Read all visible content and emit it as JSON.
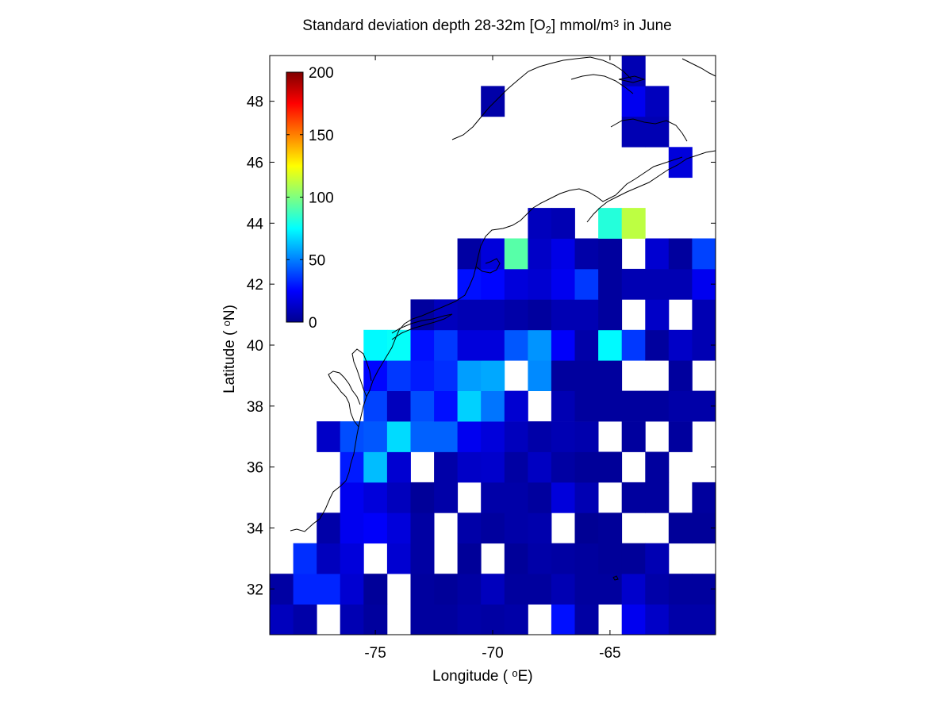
{
  "title": {
    "prefix": "Standard deviation depth 28-32m [O",
    "sub": "2",
    "middle": "] mmol/m",
    "sup": "3",
    "suffix": " in June"
  },
  "xlabel": {
    "text": "Longitude (",
    "deg": "o",
    "unit": "E)"
  },
  "ylabel": {
    "text": "Latitude (",
    "deg": "o",
    "unit": "N)"
  },
  "chart_data": {
    "type": "heatmap",
    "x_range": [
      -79.5,
      -60.5
    ],
    "y_range": [
      30.5,
      49.5
    ],
    "x_ticks": [
      -75,
      -70,
      -65
    ],
    "x_tick_labels": [
      "-75",
      "-70",
      "-65"
    ],
    "y_ticks": [
      32,
      34,
      36,
      38,
      40,
      42,
      44,
      46,
      48
    ],
    "y_tick_labels": [
      "32",
      "34",
      "36",
      "38",
      "40",
      "42",
      "44",
      "46",
      "48"
    ],
    "colorbar": {
      "colormap": "jet",
      "range": [
        0,
        200
      ],
      "ticks": [
        0,
        50,
        100,
        150,
        200
      ],
      "tick_labels": [
        "0",
        "50",
        "100",
        "150",
        "200"
      ]
    },
    "cell_size_deg": 1,
    "cells_note": "each cell: [lon_center, lat_center, std_dev]",
    "cells": [
      [
        -79,
        31,
        12
      ],
      [
        -78,
        31,
        8
      ],
      [
        -76,
        31,
        10
      ],
      [
        -75,
        31,
        6
      ],
      [
        -73,
        31,
        6
      ],
      [
        -72,
        31,
        6
      ],
      [
        -71,
        31,
        8
      ],
      [
        -70,
        31,
        7
      ],
      [
        -69,
        31,
        8
      ],
      [
        -67,
        31,
        28
      ],
      [
        -66,
        31,
        7
      ],
      [
        -64,
        31,
        22
      ],
      [
        -63,
        31,
        14
      ],
      [
        -62,
        31,
        8
      ],
      [
        -61,
        31,
        8
      ],
      [
        -79,
        32,
        7
      ],
      [
        -78,
        32,
        32
      ],
      [
        -77,
        32,
        32
      ],
      [
        -76,
        32,
        16
      ],
      [
        -75,
        32,
        5
      ],
      [
        -73,
        32,
        6
      ],
      [
        -72,
        32,
        5
      ],
      [
        -71,
        32,
        7
      ],
      [
        -70,
        32,
        12
      ],
      [
        -69,
        32,
        6
      ],
      [
        -68,
        32,
        6
      ],
      [
        -67,
        32,
        10
      ],
      [
        -66,
        32,
        6
      ],
      [
        -65,
        32,
        6
      ],
      [
        -64,
        32,
        15
      ],
      [
        -63,
        32,
        8
      ],
      [
        -62,
        32,
        6
      ],
      [
        -61,
        32,
        6
      ],
      [
        -78,
        33,
        34
      ],
      [
        -77,
        33,
        12
      ],
      [
        -76,
        33,
        18
      ],
      [
        -74,
        33,
        16
      ],
      [
        -73,
        33,
        7
      ],
      [
        -71,
        33,
        5
      ],
      [
        -69,
        33,
        5
      ],
      [
        -68,
        33,
        8
      ],
      [
        -67,
        33,
        7
      ],
      [
        -66,
        33,
        6
      ],
      [
        -65,
        33,
        5
      ],
      [
        -64,
        33,
        5
      ],
      [
        -63,
        33,
        10
      ],
      [
        -77,
        34,
        8
      ],
      [
        -76,
        34,
        22
      ],
      [
        -75,
        34,
        24
      ],
      [
        -74,
        34,
        18
      ],
      [
        -73,
        34,
        7
      ],
      [
        -71,
        34,
        8
      ],
      [
        -70,
        34,
        6
      ],
      [
        -69,
        34,
        8
      ],
      [
        -68,
        34,
        9
      ],
      [
        -66,
        34,
        4
      ],
      [
        -65,
        34,
        5
      ],
      [
        -62,
        34,
        5
      ],
      [
        -61,
        34,
        5
      ],
      [
        -76,
        35,
        22
      ],
      [
        -75,
        35,
        18
      ],
      [
        -74,
        35,
        12
      ],
      [
        -73,
        35,
        5
      ],
      [
        -72,
        35,
        8
      ],
      [
        -70,
        35,
        8
      ],
      [
        -69,
        35,
        8
      ],
      [
        -68,
        35,
        6
      ],
      [
        -67,
        35,
        18
      ],
      [
        -66,
        35,
        10
      ],
      [
        -64,
        35,
        6
      ],
      [
        -63,
        35,
        6
      ],
      [
        -61,
        35,
        6
      ],
      [
        -76,
        36,
        30
      ],
      [
        -75,
        36,
        62
      ],
      [
        -74,
        36,
        16
      ],
      [
        -72,
        36,
        8
      ],
      [
        -71,
        36,
        14
      ],
      [
        -70,
        36,
        15
      ],
      [
        -69,
        36,
        7
      ],
      [
        -68,
        36,
        13
      ],
      [
        -67,
        36,
        7
      ],
      [
        -66,
        36,
        5
      ],
      [
        -65,
        36,
        5
      ],
      [
        -63,
        36,
        6
      ],
      [
        -77,
        37,
        14
      ],
      [
        -76,
        37,
        40
      ],
      [
        -75,
        37,
        42
      ],
      [
        -74,
        37,
        68
      ],
      [
        -73,
        37,
        44
      ],
      [
        -72,
        37,
        44
      ],
      [
        -71,
        37,
        22
      ],
      [
        -70,
        37,
        18
      ],
      [
        -69,
        37,
        12
      ],
      [
        -68,
        37,
        8
      ],
      [
        -67,
        37,
        10
      ],
      [
        -66,
        37,
        9
      ],
      [
        -64,
        37,
        6
      ],
      [
        -62,
        37,
        6
      ],
      [
        -75,
        38,
        38
      ],
      [
        -74,
        38,
        12
      ],
      [
        -73,
        38,
        40
      ],
      [
        -72,
        38,
        28
      ],
      [
        -71,
        38,
        66
      ],
      [
        -70,
        38,
        48
      ],
      [
        -69,
        38,
        16
      ],
      [
        -67,
        38,
        10
      ],
      [
        -66,
        38,
        6
      ],
      [
        -65,
        38,
        6
      ],
      [
        -64,
        38,
        6
      ],
      [
        -63,
        38,
        6
      ],
      [
        -62,
        38,
        8
      ],
      [
        -61,
        38,
        8
      ],
      [
        -75,
        39,
        26
      ],
      [
        -74,
        39,
        36
      ],
      [
        -73,
        39,
        30
      ],
      [
        -72,
        39,
        34
      ],
      [
        -71,
        39,
        56
      ],
      [
        -70,
        39,
        58
      ],
      [
        -68,
        39,
        52
      ],
      [
        -67,
        39,
        6
      ],
      [
        -66,
        39,
        6
      ],
      [
        -65,
        39,
        6
      ],
      [
        -62,
        39,
        6
      ],
      [
        -75,
        40,
        74
      ],
      [
        -74,
        40,
        76
      ],
      [
        -73,
        40,
        28
      ],
      [
        -72,
        40,
        36
      ],
      [
        -71,
        40,
        18
      ],
      [
        -70,
        40,
        18
      ],
      [
        -69,
        40,
        42
      ],
      [
        -68,
        40,
        54
      ],
      [
        -67,
        40,
        24
      ],
      [
        -66,
        40,
        8
      ],
      [
        -65,
        40,
        74
      ],
      [
        -64,
        40,
        36
      ],
      [
        -63,
        40,
        6
      ],
      [
        -62,
        40,
        14
      ],
      [
        -61,
        40,
        10
      ],
      [
        -73,
        41,
        6
      ],
      [
        -72,
        41,
        12
      ],
      [
        -71,
        41,
        10
      ],
      [
        -70,
        41,
        10
      ],
      [
        -69,
        41,
        8
      ],
      [
        -68,
        41,
        6
      ],
      [
        -67,
        41,
        10
      ],
      [
        -66,
        41,
        10
      ],
      [
        -65,
        41,
        6
      ],
      [
        -63,
        41,
        14
      ],
      [
        -61,
        41,
        10
      ],
      [
        -71,
        42,
        28
      ],
      [
        -70,
        42,
        26
      ],
      [
        -69,
        42,
        18
      ],
      [
        -68,
        42,
        16
      ],
      [
        -67,
        42,
        22
      ],
      [
        -66,
        42,
        36
      ],
      [
        -65,
        42,
        6
      ],
      [
        -64,
        42,
        10
      ],
      [
        -63,
        42,
        10
      ],
      [
        -62,
        42,
        10
      ],
      [
        -61,
        42,
        22
      ],
      [
        -71,
        43,
        7
      ],
      [
        -70,
        43,
        18
      ],
      [
        -69,
        43,
        92
      ],
      [
        -68,
        43,
        14
      ],
      [
        -67,
        43,
        20
      ],
      [
        -66,
        43,
        8
      ],
      [
        -65,
        43,
        6
      ],
      [
        -63,
        43,
        16
      ],
      [
        -62,
        43,
        6
      ],
      [
        -61,
        43,
        38
      ],
      [
        -68,
        44,
        12
      ],
      [
        -67,
        44,
        10
      ],
      [
        -65,
        44,
        82
      ],
      [
        -64,
        44,
        112
      ],
      [
        -62,
        46,
        18
      ],
      [
        -64,
        47,
        10
      ],
      [
        -63,
        47,
        10
      ],
      [
        -70,
        48,
        8
      ],
      [
        -64,
        48,
        22
      ],
      [
        -63,
        48,
        12
      ],
      [
        -64,
        49,
        10
      ]
    ]
  },
  "coastline": {
    "color": "#000000"
  }
}
